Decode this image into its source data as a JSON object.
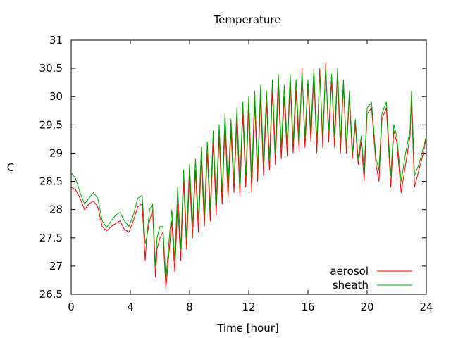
{
  "chart_data": {
    "type": "line",
    "title": "Temperature",
    "xlabel": "Time [hour]",
    "ylabel": "C",
    "xlim": [
      0,
      24
    ],
    "ylim": [
      26.5,
      31
    ],
    "xticks": [
      0,
      4,
      8,
      12,
      16,
      20,
      24
    ],
    "yticks": [
      26.5,
      27,
      27.5,
      28,
      28.5,
      29,
      29.5,
      30,
      30.5,
      31
    ],
    "grid": false,
    "legend_position": "bottom-right",
    "series": [
      {
        "name": "aerosol",
        "color": "#ff0000",
        "x": [
          0,
          0.3,
          0.6,
          0.9,
          1.2,
          1.5,
          1.8,
          2.1,
          2.4,
          2.7,
          3.0,
          3.3,
          3.6,
          3.9,
          4.2,
          4.5,
          4.8,
          5.0,
          5.1,
          5.3,
          5.5,
          5.7,
          5.8,
          6.0,
          6.2,
          6.4,
          6.6,
          6.8,
          7.0,
          7.2,
          7.4,
          7.6,
          7.8,
          8.0,
          8.2,
          8.4,
          8.6,
          8.8,
          9.0,
          9.2,
          9.4,
          9.6,
          9.8,
          10.0,
          10.2,
          10.4,
          10.6,
          10.8,
          11.0,
          11.2,
          11.4,
          11.6,
          11.8,
          12.0,
          12.2,
          12.4,
          12.6,
          12.8,
          13.0,
          13.2,
          13.4,
          13.6,
          13.8,
          14.0,
          14.2,
          14.4,
          14.6,
          14.8,
          15.0,
          15.2,
          15.4,
          15.6,
          15.8,
          16.0,
          16.2,
          16.4,
          16.6,
          16.8,
          17.0,
          17.2,
          17.4,
          17.6,
          17.8,
          18.0,
          18.2,
          18.4,
          18.6,
          18.8,
          19.0,
          19.2,
          19.4,
          19.6,
          19.8,
          20.0,
          20.3,
          20.6,
          20.8,
          21.0,
          21.3,
          21.6,
          21.8,
          22.0,
          22.3,
          22.6,
          22.9,
          23.0,
          23.2,
          23.5,
          23.8,
          24.0
        ],
        "values": [
          28.4,
          28.35,
          28.2,
          28.0,
          28.1,
          28.15,
          28.05,
          27.7,
          27.62,
          27.7,
          27.75,
          27.8,
          27.65,
          27.6,
          27.8,
          28.05,
          28.1,
          27.1,
          27.5,
          27.8,
          28.0,
          26.8,
          27.3,
          27.5,
          27.6,
          26.6,
          27.2,
          27.8,
          26.9,
          28.1,
          27.1,
          28.5,
          27.3,
          28.6,
          27.5,
          28.7,
          27.6,
          28.9,
          27.7,
          29.0,
          27.8,
          29.2,
          27.9,
          29.3,
          28.1,
          29.5,
          28.2,
          29.4,
          28.3,
          29.6,
          28.25,
          29.7,
          28.4,
          29.8,
          28.3,
          29.9,
          28.5,
          30.0,
          28.6,
          29.9,
          28.7,
          30.1,
          28.8,
          30.2,
          28.9,
          30.0,
          28.95,
          30.3,
          29.0,
          30.1,
          29.05,
          30.5,
          29.1,
          30.2,
          29.2,
          30.4,
          29.0,
          30.5,
          29.1,
          30.6,
          29.2,
          30.3,
          29.1,
          30.4,
          29.0,
          30.2,
          29.0,
          30.0,
          28.9,
          29.5,
          28.8,
          29.2,
          28.5,
          29.7,
          29.8,
          28.8,
          28.5,
          29.6,
          29.8,
          28.4,
          29.4,
          29.2,
          28.3,
          28.8,
          29.3,
          29.9,
          28.4,
          28.7,
          29.0,
          29.3
        ]
      },
      {
        "name": "sheath",
        "color": "#00a000",
        "x": [
          0,
          0.3,
          0.6,
          0.9,
          1.2,
          1.5,
          1.8,
          2.1,
          2.4,
          2.7,
          3.0,
          3.3,
          3.6,
          3.9,
          4.2,
          4.5,
          4.8,
          5.0,
          5.1,
          5.3,
          5.5,
          5.7,
          5.8,
          6.0,
          6.2,
          6.4,
          6.6,
          6.8,
          7.0,
          7.2,
          7.4,
          7.6,
          7.8,
          8.0,
          8.2,
          8.4,
          8.6,
          8.8,
          9.0,
          9.2,
          9.4,
          9.6,
          9.8,
          10.0,
          10.2,
          10.4,
          10.6,
          10.8,
          11.0,
          11.2,
          11.4,
          11.6,
          11.8,
          12.0,
          12.2,
          12.4,
          12.6,
          12.8,
          13.0,
          13.2,
          13.4,
          13.6,
          13.8,
          14.0,
          14.2,
          14.4,
          14.6,
          14.8,
          15.0,
          15.2,
          15.4,
          15.6,
          15.8,
          16.0,
          16.2,
          16.4,
          16.6,
          16.8,
          17.0,
          17.2,
          17.4,
          17.6,
          17.8,
          18.0,
          18.2,
          18.4,
          18.6,
          18.8,
          19.0,
          19.2,
          19.4,
          19.6,
          19.8,
          20.0,
          20.3,
          20.6,
          20.8,
          21.0,
          21.3,
          21.6,
          21.8,
          22.0,
          22.3,
          22.6,
          22.9,
          23.0,
          23.2,
          23.5,
          23.8,
          24.0
        ],
        "values": [
          28.65,
          28.55,
          28.3,
          28.1,
          28.2,
          28.3,
          28.2,
          27.8,
          27.68,
          27.8,
          27.9,
          27.95,
          27.8,
          27.7,
          27.9,
          28.2,
          28.25,
          27.4,
          27.5,
          28.0,
          28.1,
          27.0,
          27.5,
          27.7,
          27.7,
          26.75,
          27.4,
          28.0,
          27.1,
          28.4,
          27.3,
          28.7,
          27.5,
          28.8,
          27.7,
          28.9,
          27.8,
          29.1,
          27.9,
          29.2,
          28.0,
          29.4,
          28.1,
          29.5,
          28.3,
          29.7,
          28.4,
          29.6,
          28.5,
          29.8,
          28.45,
          29.9,
          28.6,
          30.0,
          28.5,
          30.1,
          28.7,
          30.2,
          28.8,
          30.1,
          28.9,
          30.3,
          29.0,
          30.4,
          29.1,
          30.2,
          29.15,
          30.4,
          29.2,
          30.3,
          29.25,
          30.4,
          29.3,
          30.3,
          29.4,
          30.5,
          29.2,
          30.4,
          29.3,
          30.5,
          29.4,
          30.4,
          29.3,
          30.5,
          29.2,
          30.3,
          29.1,
          30.1,
          29.0,
          29.6,
          28.9,
          29.3,
          28.7,
          29.8,
          29.9,
          28.9,
          28.7,
          29.7,
          29.9,
          28.6,
          29.5,
          29.3,
          28.5,
          29.0,
          29.4,
          30.1,
          28.6,
          28.8,
          29.1,
          29.3
        ]
      }
    ]
  }
}
